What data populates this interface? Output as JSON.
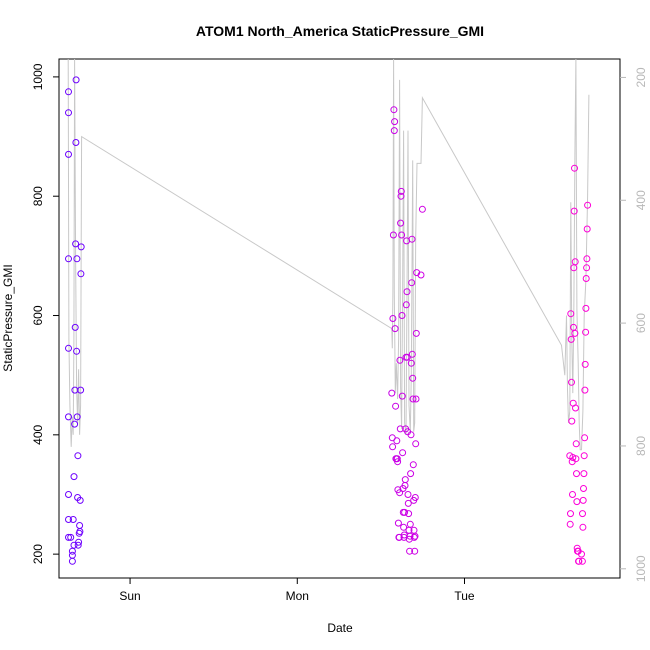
{
  "chart_data": {
    "type": "scatter",
    "title": "ATOM1 North_America StaticPressure_GMI",
    "xlabel": "Date",
    "ylabel": "StaticPressure_GMI",
    "x_ticks": [
      {
        "label": "Sun",
        "day": 1.0
      },
      {
        "label": "Mon",
        "day": 2.0
      },
      {
        "label": "Tue",
        "day": 3.0
      }
    ],
    "xlim_days": [
      0.575,
      3.93
    ],
    "ylim": [
      160,
      1030
    ],
    "y_ticks": [
      200,
      400,
      600,
      800,
      1000
    ],
    "right_axis": {
      "inverted": true,
      "ylim": [
        1015,
        170
      ],
      "ticks": [
        200,
        400,
        600,
        800,
        1000
      ],
      "color": "#b8b8b8"
    },
    "line_color": "#c8c8c8",
    "point_colors": {
      "start": "#6a00ff",
      "end": "#ff00d8"
    },
    "series": [
      {
        "points": [
          [
            0.632,
            975
          ],
          [
            0.632,
            940
          ],
          [
            0.632,
            870
          ],
          [
            0.632,
            695
          ],
          [
            0.632,
            545
          ],
          [
            0.632,
            430
          ],
          [
            0.632,
            300
          ],
          [
            0.632,
            258
          ],
          [
            0.632,
            228
          ],
          [
            0.645,
            228
          ],
          [
            0.655,
            205
          ],
          [
            0.655,
            198
          ],
          [
            0.655,
            188
          ],
          [
            0.66,
            258
          ],
          [
            0.665,
            215
          ],
          [
            0.665,
            330
          ],
          [
            0.668,
            418
          ],
          [
            0.67,
            475
          ],
          [
            0.672,
            580
          ],
          [
            0.674,
            720
          ],
          [
            0.676,
            890
          ],
          [
            0.677,
            995
          ],
          [
            0.68,
            540
          ],
          [
            0.682,
            695
          ],
          [
            0.684,
            430
          ],
          [
            0.686,
            295
          ],
          [
            0.688,
            365
          ],
          [
            0.69,
            215
          ],
          [
            0.692,
            220
          ],
          [
            0.696,
            235
          ],
          [
            0.698,
            248
          ],
          [
            0.7,
            238
          ],
          [
            0.702,
            290
          ],
          [
            0.704,
            475
          ],
          [
            0.706,
            670
          ],
          [
            0.708,
            715
          ],
          [
            2.565,
            470
          ],
          [
            2.568,
            395
          ],
          [
            2.57,
            380
          ],
          [
            2.572,
            595
          ],
          [
            2.575,
            735
          ],
          [
            2.578,
            945
          ],
          [
            2.58,
            910
          ],
          [
            2.582,
            925
          ],
          [
            2.585,
            578
          ],
          [
            2.588,
            448
          ],
          [
            2.59,
            360
          ],
          [
            2.592,
            360
          ],
          [
            2.595,
            390
          ],
          [
            2.598,
            360
          ],
          [
            2.6,
            355
          ],
          [
            2.602,
            308
          ],
          [
            2.605,
            252
          ],
          [
            2.608,
            228
          ],
          [
            2.61,
            228
          ],
          [
            2.612,
            303
          ],
          [
            2.614,
            525
          ],
          [
            2.616,
            410
          ],
          [
            2.618,
            755
          ],
          [
            2.62,
            800
          ],
          [
            2.622,
            808
          ],
          [
            2.624,
            735
          ],
          [
            2.626,
            600
          ],
          [
            2.628,
            465
          ],
          [
            2.63,
            370
          ],
          [
            2.632,
            310
          ],
          [
            2.634,
            270
          ],
          [
            2.636,
            245
          ],
          [
            2.638,
            228
          ],
          [
            2.64,
            232
          ],
          [
            2.642,
            270
          ],
          [
            2.644,
            315
          ],
          [
            2.646,
            325
          ],
          [
            2.648,
            410
          ],
          [
            2.65,
            530
          ],
          [
            2.652,
            618
          ],
          [
            2.654,
            725
          ],
          [
            2.656,
            640
          ],
          [
            2.658,
            530
          ],
          [
            2.66,
            405
          ],
          [
            2.662,
            300
          ],
          [
            2.664,
            285
          ],
          [
            2.666,
            268
          ],
          [
            2.668,
            240
          ],
          [
            2.67,
            225
          ],
          [
            2.672,
            205
          ],
          [
            2.674,
            230
          ],
          [
            2.676,
            250
          ],
          [
            2.678,
            335
          ],
          [
            2.68,
            400
          ],
          [
            2.682,
            520
          ],
          [
            2.684,
            655
          ],
          [
            2.686,
            728
          ],
          [
            2.688,
            535
          ],
          [
            2.69,
            495
          ],
          [
            2.692,
            460
          ],
          [
            2.694,
            350
          ],
          [
            2.696,
            290
          ],
          [
            2.698,
            240
          ],
          [
            2.7,
            228
          ],
          [
            2.702,
            205
          ],
          [
            2.704,
            230
          ],
          [
            2.706,
            295
          ],
          [
            2.708,
            385
          ],
          [
            2.71,
            460
          ],
          [
            2.712,
            570
          ],
          [
            2.714,
            672
          ],
          [
            2.74,
            668
          ],
          [
            2.748,
            778
          ],
          [
            3.63,
            365
          ],
          [
            3.632,
            250
          ],
          [
            3.634,
            268
          ],
          [
            3.636,
            603
          ],
          [
            3.638,
            560
          ],
          [
            3.64,
            488
          ],
          [
            3.642,
            423
          ],
          [
            3.644,
            355
          ],
          [
            3.646,
            300
          ],
          [
            3.648,
            362
          ],
          [
            3.65,
            453
          ],
          [
            3.652,
            580
          ],
          [
            3.654,
            680
          ],
          [
            3.656,
            775
          ],
          [
            3.658,
            847
          ],
          [
            3.66,
            570
          ],
          [
            3.662,
            690
          ],
          [
            3.664,
            445
          ],
          [
            3.666,
            360
          ],
          [
            3.668,
            385
          ],
          [
            3.67,
            335
          ],
          [
            3.672,
            288
          ],
          [
            3.674,
            210
          ],
          [
            3.676,
            205
          ],
          [
            3.678,
            205
          ],
          [
            3.68,
            205
          ],
          [
            3.682,
            188
          ],
          [
            3.684,
            188
          ],
          [
            3.7,
            200
          ],
          [
            3.705,
            188
          ],
          [
            3.71,
            290
          ],
          [
            3.712,
            310
          ],
          [
            3.714,
            335
          ],
          [
            3.716,
            365
          ],
          [
            3.718,
            395
          ],
          [
            3.72,
            475
          ],
          [
            3.722,
            518
          ],
          [
            3.724,
            572
          ],
          [
            3.726,
            612
          ],
          [
            3.728,
            662
          ],
          [
            3.73,
            680
          ],
          [
            3.732,
            695
          ],
          [
            3.734,
            745
          ],
          [
            3.736,
            785
          ],
          [
            3.706,
            268
          ],
          [
            3.708,
            245
          ]
        ]
      }
    ],
    "line": [
      [
        0.63,
        1030
      ],
      [
        0.634,
        560
      ],
      [
        0.64,
        450
      ],
      [
        0.648,
        380
      ],
      [
        0.654,
        430
      ],
      [
        0.66,
        400
      ],
      [
        0.664,
        560
      ],
      [
        0.668,
        1030
      ],
      [
        0.674,
        700
      ],
      [
        0.68,
        480
      ],
      [
        0.686,
        420
      ],
      [
        0.692,
        510
      ],
      [
        0.698,
        400
      ],
      [
        0.704,
        450
      ],
      [
        0.71,
        900
      ],
      [
        2.565,
        578
      ],
      [
        2.568,
        545
      ],
      [
        2.572,
        640
      ],
      [
        2.576,
        1030
      ],
      [
        2.58,
        640
      ],
      [
        2.586,
        470
      ],
      [
        2.592,
        520
      ],
      [
        2.6,
        460
      ],
      [
        2.606,
        560
      ],
      [
        2.612,
        995
      ],
      [
        2.618,
        480
      ],
      [
        2.624,
        410
      ],
      [
        2.63,
        640
      ],
      [
        2.636,
        910
      ],
      [
        2.642,
        420
      ],
      [
        2.65,
        400
      ],
      [
        2.656,
        640
      ],
      [
        2.662,
        910
      ],
      [
        2.668,
        450
      ],
      [
        2.676,
        405
      ],
      [
        2.682,
        500
      ],
      [
        2.69,
        860
      ],
      [
        2.696,
        405
      ],
      [
        2.702,
        420
      ],
      [
        2.708,
        730
      ],
      [
        2.716,
        855
      ],
      [
        2.74,
        855
      ],
      [
        2.748,
        965
      ],
      [
        3.58,
        550
      ],
      [
        3.6,
        500
      ],
      [
        3.61,
        600
      ],
      [
        3.616,
        475
      ],
      [
        3.622,
        420
      ],
      [
        3.63,
        440
      ],
      [
        3.636,
        790
      ],
      [
        3.642,
        560
      ],
      [
        3.648,
        470
      ],
      [
        3.654,
        600
      ],
      [
        3.66,
        870
      ],
      [
        3.666,
        1030
      ],
      [
        3.672,
        610
      ],
      [
        3.68,
        520
      ],
      [
        3.686,
        420
      ],
      [
        3.692,
        375
      ],
      [
        3.7,
        375
      ],
      [
        3.708,
        440
      ],
      [
        3.716,
        600
      ],
      [
        3.726,
        660
      ],
      [
        3.736,
        800
      ],
      [
        3.744,
        970
      ]
    ]
  }
}
